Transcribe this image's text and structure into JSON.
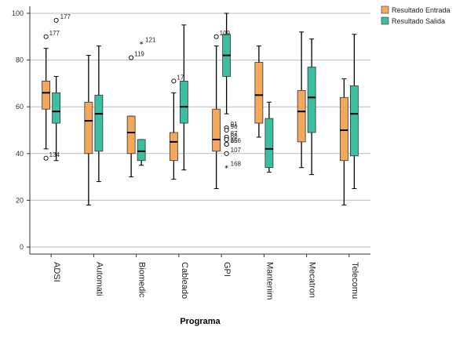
{
  "chart_data": {
    "type": "boxplot",
    "xlabel": "Programa",
    "ylabel": "",
    "ylim": [
      -3,
      103
    ],
    "yticks": [
      0,
      20,
      40,
      60,
      80,
      100
    ],
    "grid": true,
    "legend_position": "top-right",
    "categories": [
      "ADSI",
      "Automati",
      "Biomedic",
      "Cableado",
      "GPI",
      "Mantenim",
      "Mecatron",
      "Telecomu"
    ],
    "series": [
      {
        "name": "Resultado Entrada",
        "color": "#F3A85B",
        "boxes": [
          {
            "min": 42,
            "q1": 59,
            "median": 66,
            "q3": 71,
            "max": 85
          },
          {
            "min": 18,
            "q1": 40,
            "median": 54,
            "q3": 62,
            "max": 82
          },
          {
            "min": 30,
            "q1": 40,
            "median": 49,
            "q3": 56,
            "max": 56
          },
          {
            "min": 29,
            "q1": 37,
            "median": 45,
            "q3": 49,
            "max": 66
          },
          {
            "min": 25,
            "q1": 41,
            "median": 46,
            "q3": 59,
            "max": 86
          },
          {
            "min": 47,
            "q1": 53,
            "median": 65,
            "q3": 79,
            "max": 86
          },
          {
            "min": 34,
            "q1": 45,
            "median": 58,
            "q3": 67,
            "max": 92
          },
          {
            "min": 18,
            "q1": 37,
            "median": 50,
            "q3": 64,
            "max": 72
          }
        ]
      },
      {
        "name": "Resultado Salida",
        "color": "#3CBFA0",
        "boxes": [
          {
            "min": 37,
            "q1": 53,
            "median": 58,
            "q3": 66,
            "max": 73
          },
          {
            "min": 28,
            "q1": 41,
            "median": 57,
            "q3": 65,
            "max": 86
          },
          {
            "min": 35,
            "q1": 37,
            "median": 41,
            "q3": 46,
            "max": 46
          },
          {
            "min": 33,
            "q1": 53,
            "median": 60,
            "q3": 71,
            "max": 95
          },
          {
            "min": 57,
            "q1": 73,
            "median": 82,
            "q3": 91,
            "max": 100
          },
          {
            "min": 32,
            "q1": 34,
            "median": 42,
            "q3": 55,
            "max": 62
          },
          {
            "min": 31,
            "q1": 49,
            "median": 64,
            "q3": 77,
            "max": 89
          },
          {
            "min": 25,
            "q1": 39,
            "median": 57,
            "q3": 69,
            "max": 91
          }
        ]
      }
    ],
    "outliers": [
      {
        "category": "ADSI",
        "series": "Resultado Entrada",
        "value": 90,
        "label": "177",
        "marker": "circle"
      },
      {
        "category": "ADSI",
        "series": "Resultado Entrada",
        "value": 38,
        "label": "134",
        "marker": "circle"
      },
      {
        "category": "ADSI",
        "series": "Resultado Salida",
        "value": 97,
        "label": "177",
        "marker": "circle"
      },
      {
        "category": "Biomedic",
        "series": "Resultado Entrada",
        "value": 81,
        "label": "119",
        "marker": "circle"
      },
      {
        "category": "Biomedic",
        "series": "Resultado Salida",
        "value": 87,
        "label": "121",
        "marker": "star"
      },
      {
        "category": "Cableado",
        "series": "Resultado Entrada",
        "value": 71,
        "label": "17",
        "marker": "circle"
      },
      {
        "category": "GPI",
        "series": "Resultado Entrada",
        "value": 90,
        "label": "109",
        "marker": "circle"
      },
      {
        "category": "GPI",
        "series": "Resultado Salida",
        "value": 51,
        "label": "91",
        "marker": "circle"
      },
      {
        "category": "GPI",
        "series": "Resultado Salida",
        "value": 50,
        "label": "96",
        "marker": "circle"
      },
      {
        "category": "GPI",
        "series": "Resultado Salida",
        "value": 47,
        "label": "87",
        "marker": "circle"
      },
      {
        "category": "GPI",
        "series": "Resultado Salida",
        "value": 46,
        "label": "88",
        "marker": "circle"
      },
      {
        "category": "GPI",
        "series": "Resultado Salida",
        "value": 44,
        "label": "85",
        "marker": "circle"
      },
      {
        "category": "GPI",
        "series": "Resultado Salida",
        "value": 44,
        "label": "166",
        "marker": "circle"
      },
      {
        "category": "GPI",
        "series": "Resultado Salida",
        "value": 40,
        "label": "107",
        "marker": "circle"
      },
      {
        "category": "GPI",
        "series": "Resultado Salida",
        "value": 34,
        "label": "168",
        "marker": "star"
      }
    ]
  }
}
